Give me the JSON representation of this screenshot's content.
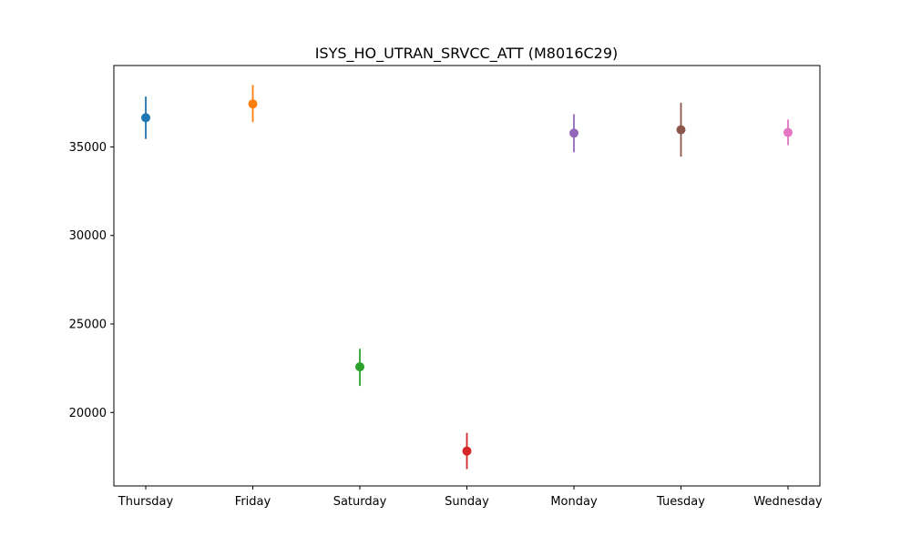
{
  "chart_data": {
    "type": "scatter",
    "title": "ISYS_HO_UTRAN_SRVCC_ATT (M8016C29)",
    "xlabel": "",
    "ylabel": "",
    "categories": [
      "Thursday",
      "Friday",
      "Saturday",
      "Sunday",
      "Monday",
      "Tuesday",
      "Wednesday"
    ],
    "points": [
      {
        "category": "Thursday",
        "value": 36650,
        "err_low": 35450,
        "err_high": 37850,
        "color": "#1f77b4"
      },
      {
        "category": "Friday",
        "value": 37430,
        "err_low": 36400,
        "err_high": 38500,
        "color": "#ff7f0e"
      },
      {
        "category": "Saturday",
        "value": 22580,
        "err_low": 21500,
        "err_high": 23600,
        "color": "#2ca02c"
      },
      {
        "category": "Sunday",
        "value": 17820,
        "err_low": 16800,
        "err_high": 18850,
        "color": "#d62728"
      },
      {
        "category": "Monday",
        "value": 35780,
        "err_low": 34700,
        "err_high": 36850,
        "color": "#9467bd"
      },
      {
        "category": "Tuesday",
        "value": 35970,
        "err_low": 34450,
        "err_high": 37500,
        "color": "#8c564b"
      },
      {
        "category": "Wednesday",
        "value": 35820,
        "err_low": 35100,
        "err_high": 36550,
        "color": "#e377c2"
      }
    ],
    "yticks": [
      20000,
      25000,
      30000,
      35000
    ],
    "ylim": [
      15850,
      39600
    ],
    "grid": false,
    "legend": "none"
  }
}
